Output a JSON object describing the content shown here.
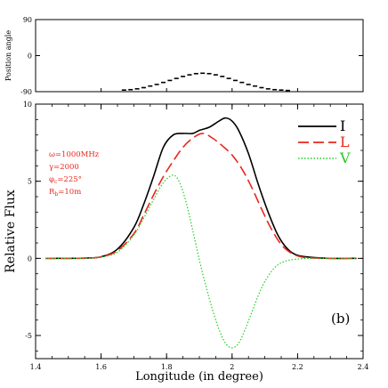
{
  "chart_data": [
    {
      "type": "scatter",
      "panel": "position-angle",
      "ylabel": "Position angle",
      "xlim": [
        1.4,
        2.4
      ],
      "ylim": [
        -90,
        90
      ],
      "yticks": [
        {
          "value": 90,
          "label": "90"
        },
        {
          "value": 0,
          "label": "0"
        },
        {
          "value": -90,
          "label": "-90"
        }
      ],
      "color": "#000000",
      "series": [
        {
          "marker": "dash",
          "x": [
            1.67,
            1.69,
            1.71,
            1.73,
            1.75,
            1.77,
            1.79,
            1.81,
            1.83,
            1.85,
            1.87,
            1.89,
            1.91,
            1.93,
            1.95,
            1.97,
            1.99,
            2.01,
            2.03,
            2.05,
            2.07,
            2.09,
            2.11,
            2.13,
            2.15,
            2.17
          ],
          "y": [
            -86,
            -85,
            -83,
            -80,
            -76,
            -72,
            -67,
            -62,
            -57,
            -52,
            -48,
            -45,
            -44,
            -45,
            -48,
            -52,
            -57,
            -62,
            -67,
            -72,
            -76,
            -80,
            -83,
            -85,
            -86,
            -87
          ]
        }
      ]
    },
    {
      "type": "line",
      "panel": "flux",
      "xlabel": "Longitude (in degree)",
      "ylabel": "Relative Flux",
      "xlim": [
        1.4,
        2.4
      ],
      "ylim": [
        -6.5,
        10
      ],
      "xticks": [
        {
          "value": 1.4,
          "label": "1.4"
        },
        {
          "value": 1.6,
          "label": "1.6"
        },
        {
          "value": 1.8,
          "label": "1.8"
        },
        {
          "value": 2.0,
          "label": "2"
        },
        {
          "value": 2.2,
          "label": "2.2"
        },
        {
          "value": 2.4,
          "label": "2.4"
        }
      ],
      "yticks": [
        {
          "value": 10,
          "label": "10"
        },
        {
          "value": 5,
          "label": "5"
        },
        {
          "value": 0,
          "label": "0"
        },
        {
          "value": -5,
          "label": "-5"
        }
      ],
      "legend_position": "top-right",
      "panel_label": "(b)",
      "parameters": [
        "ω=1000MHz",
        "γ=2000",
        "φ",
        "=225°",
        "R",
        "=10m"
      ],
      "parameter_subscripts": [
        "c",
        "b"
      ],
      "series": [
        {
          "name": "I",
          "color": "#000000",
          "dash": "solid",
          "x": [
            1.43,
            1.5,
            1.55,
            1.6,
            1.65,
            1.7,
            1.73,
            1.76,
            1.79,
            1.82,
            1.85,
            1.88,
            1.9,
            1.93,
            1.96,
            1.98,
            2.0,
            2.02,
            2.05,
            2.08,
            2.11,
            2.14,
            2.17,
            2.2,
            2.25,
            2.3,
            2.38
          ],
          "y": [
            0,
            0,
            0.02,
            0.1,
            0.6,
            2.0,
            3.5,
            5.3,
            7.2,
            8.0,
            8.1,
            8.1,
            8.3,
            8.5,
            8.9,
            9.1,
            8.9,
            8.3,
            6.8,
            4.8,
            3.0,
            1.5,
            0.6,
            0.2,
            0.05,
            0,
            0
          ]
        },
        {
          "name": "L",
          "color": "#e8281e",
          "dash": "dashed",
          "x": [
            1.43,
            1.5,
            1.55,
            1.6,
            1.65,
            1.7,
            1.73,
            1.76,
            1.79,
            1.82,
            1.85,
            1.88,
            1.91,
            1.94,
            1.97,
            2.0,
            2.03,
            2.06,
            2.09,
            2.12,
            2.15,
            2.18,
            2.21,
            2.25,
            2.3,
            2.38
          ],
          "y": [
            0,
            0,
            0.01,
            0.1,
            0.5,
            1.6,
            2.8,
            4.1,
            5.3,
            6.3,
            7.2,
            7.8,
            8.1,
            7.8,
            7.3,
            6.7,
            5.8,
            4.6,
            3.2,
            1.9,
            0.9,
            0.35,
            0.1,
            0.02,
            0,
            0
          ]
        },
        {
          "name": "V",
          "color": "#22cc22",
          "dash": "dotted",
          "x": [
            1.43,
            1.5,
            1.55,
            1.6,
            1.65,
            1.7,
            1.73,
            1.76,
            1.79,
            1.82,
            1.84,
            1.86,
            1.88,
            1.9,
            1.92,
            1.94,
            1.96,
            1.98,
            2.0,
            2.02,
            2.04,
            2.06,
            2.08,
            2.1,
            2.13,
            2.16,
            2.2,
            2.25,
            2.3,
            2.38
          ],
          "y": [
            0,
            0,
            0.01,
            0.08,
            0.4,
            1.5,
            2.6,
            3.8,
            4.9,
            5.4,
            4.9,
            3.6,
            1.8,
            -0.1,
            -1.8,
            -3.3,
            -4.6,
            -5.5,
            -5.8,
            -5.5,
            -4.6,
            -3.5,
            -2.4,
            -1.5,
            -0.6,
            -0.2,
            -0.04,
            0,
            0,
            0
          ]
        }
      ]
    }
  ]
}
